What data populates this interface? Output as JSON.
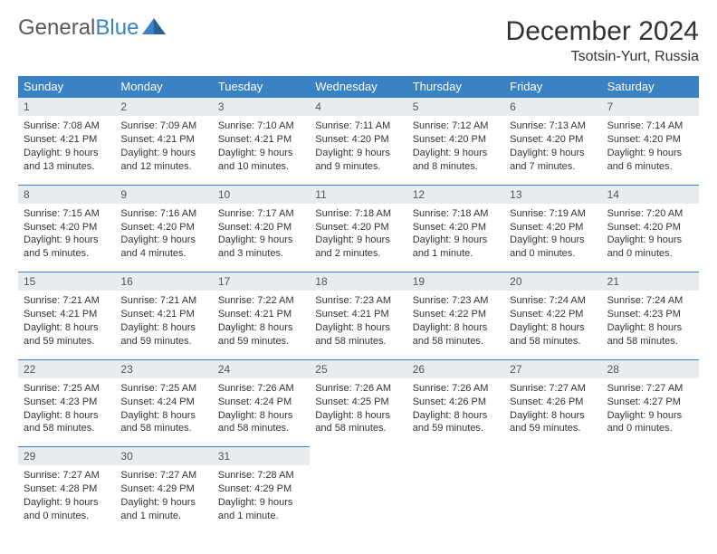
{
  "logo": {
    "word1": "General",
    "word2": "Blue"
  },
  "title": "December 2024",
  "location": "Tsotsin-Yurt, Russia",
  "colors": {
    "header_bg": "#3b82c4",
    "header_text": "#ffffff",
    "daynum_bg": "#e9ecef",
    "daynum_border": "#3b82c4",
    "body_text": "#333333",
    "logo_gray": "#5a5a5a",
    "logo_blue": "#3b82c4",
    "page_bg": "#ffffff"
  },
  "typography": {
    "title_fontsize": 30,
    "location_fontsize": 16,
    "dayname_fontsize": 13,
    "daynum_fontsize": 12,
    "cell_fontsize": 11
  },
  "day_names": [
    "Sunday",
    "Monday",
    "Tuesday",
    "Wednesday",
    "Thursday",
    "Friday",
    "Saturday"
  ],
  "weeks": [
    [
      {
        "n": "1",
        "sunrise": "Sunrise: 7:08 AM",
        "sunset": "Sunset: 4:21 PM",
        "day1": "Daylight: 9 hours",
        "day2": "and 13 minutes."
      },
      {
        "n": "2",
        "sunrise": "Sunrise: 7:09 AM",
        "sunset": "Sunset: 4:21 PM",
        "day1": "Daylight: 9 hours",
        "day2": "and 12 minutes."
      },
      {
        "n": "3",
        "sunrise": "Sunrise: 7:10 AM",
        "sunset": "Sunset: 4:21 PM",
        "day1": "Daylight: 9 hours",
        "day2": "and 10 minutes."
      },
      {
        "n": "4",
        "sunrise": "Sunrise: 7:11 AM",
        "sunset": "Sunset: 4:20 PM",
        "day1": "Daylight: 9 hours",
        "day2": "and 9 minutes."
      },
      {
        "n": "5",
        "sunrise": "Sunrise: 7:12 AM",
        "sunset": "Sunset: 4:20 PM",
        "day1": "Daylight: 9 hours",
        "day2": "and 8 minutes."
      },
      {
        "n": "6",
        "sunrise": "Sunrise: 7:13 AM",
        "sunset": "Sunset: 4:20 PM",
        "day1": "Daylight: 9 hours",
        "day2": "and 7 minutes."
      },
      {
        "n": "7",
        "sunrise": "Sunrise: 7:14 AM",
        "sunset": "Sunset: 4:20 PM",
        "day1": "Daylight: 9 hours",
        "day2": "and 6 minutes."
      }
    ],
    [
      {
        "n": "8",
        "sunrise": "Sunrise: 7:15 AM",
        "sunset": "Sunset: 4:20 PM",
        "day1": "Daylight: 9 hours",
        "day2": "and 5 minutes."
      },
      {
        "n": "9",
        "sunrise": "Sunrise: 7:16 AM",
        "sunset": "Sunset: 4:20 PM",
        "day1": "Daylight: 9 hours",
        "day2": "and 4 minutes."
      },
      {
        "n": "10",
        "sunrise": "Sunrise: 7:17 AM",
        "sunset": "Sunset: 4:20 PM",
        "day1": "Daylight: 9 hours",
        "day2": "and 3 minutes."
      },
      {
        "n": "11",
        "sunrise": "Sunrise: 7:18 AM",
        "sunset": "Sunset: 4:20 PM",
        "day1": "Daylight: 9 hours",
        "day2": "and 2 minutes."
      },
      {
        "n": "12",
        "sunrise": "Sunrise: 7:18 AM",
        "sunset": "Sunset: 4:20 PM",
        "day1": "Daylight: 9 hours",
        "day2": "and 1 minute."
      },
      {
        "n": "13",
        "sunrise": "Sunrise: 7:19 AM",
        "sunset": "Sunset: 4:20 PM",
        "day1": "Daylight: 9 hours",
        "day2": "and 0 minutes."
      },
      {
        "n": "14",
        "sunrise": "Sunrise: 7:20 AM",
        "sunset": "Sunset: 4:20 PM",
        "day1": "Daylight: 9 hours",
        "day2": "and 0 minutes."
      }
    ],
    [
      {
        "n": "15",
        "sunrise": "Sunrise: 7:21 AM",
        "sunset": "Sunset: 4:21 PM",
        "day1": "Daylight: 8 hours",
        "day2": "and 59 minutes."
      },
      {
        "n": "16",
        "sunrise": "Sunrise: 7:21 AM",
        "sunset": "Sunset: 4:21 PM",
        "day1": "Daylight: 8 hours",
        "day2": "and 59 minutes."
      },
      {
        "n": "17",
        "sunrise": "Sunrise: 7:22 AM",
        "sunset": "Sunset: 4:21 PM",
        "day1": "Daylight: 8 hours",
        "day2": "and 59 minutes."
      },
      {
        "n": "18",
        "sunrise": "Sunrise: 7:23 AM",
        "sunset": "Sunset: 4:21 PM",
        "day1": "Daylight: 8 hours",
        "day2": "and 58 minutes."
      },
      {
        "n": "19",
        "sunrise": "Sunrise: 7:23 AM",
        "sunset": "Sunset: 4:22 PM",
        "day1": "Daylight: 8 hours",
        "day2": "and 58 minutes."
      },
      {
        "n": "20",
        "sunrise": "Sunrise: 7:24 AM",
        "sunset": "Sunset: 4:22 PM",
        "day1": "Daylight: 8 hours",
        "day2": "and 58 minutes."
      },
      {
        "n": "21",
        "sunrise": "Sunrise: 7:24 AM",
        "sunset": "Sunset: 4:23 PM",
        "day1": "Daylight: 8 hours",
        "day2": "and 58 minutes."
      }
    ],
    [
      {
        "n": "22",
        "sunrise": "Sunrise: 7:25 AM",
        "sunset": "Sunset: 4:23 PM",
        "day1": "Daylight: 8 hours",
        "day2": "and 58 minutes."
      },
      {
        "n": "23",
        "sunrise": "Sunrise: 7:25 AM",
        "sunset": "Sunset: 4:24 PM",
        "day1": "Daylight: 8 hours",
        "day2": "and 58 minutes."
      },
      {
        "n": "24",
        "sunrise": "Sunrise: 7:26 AM",
        "sunset": "Sunset: 4:24 PM",
        "day1": "Daylight: 8 hours",
        "day2": "and 58 minutes."
      },
      {
        "n": "25",
        "sunrise": "Sunrise: 7:26 AM",
        "sunset": "Sunset: 4:25 PM",
        "day1": "Daylight: 8 hours",
        "day2": "and 58 minutes."
      },
      {
        "n": "26",
        "sunrise": "Sunrise: 7:26 AM",
        "sunset": "Sunset: 4:26 PM",
        "day1": "Daylight: 8 hours",
        "day2": "and 59 minutes."
      },
      {
        "n": "27",
        "sunrise": "Sunrise: 7:27 AM",
        "sunset": "Sunset: 4:26 PM",
        "day1": "Daylight: 8 hours",
        "day2": "and 59 minutes."
      },
      {
        "n": "28",
        "sunrise": "Sunrise: 7:27 AM",
        "sunset": "Sunset: 4:27 PM",
        "day1": "Daylight: 9 hours",
        "day2": "and 0 minutes."
      }
    ],
    [
      {
        "n": "29",
        "sunrise": "Sunrise: 7:27 AM",
        "sunset": "Sunset: 4:28 PM",
        "day1": "Daylight: 9 hours",
        "day2": "and 0 minutes."
      },
      {
        "n": "30",
        "sunrise": "Sunrise: 7:27 AM",
        "sunset": "Sunset: 4:29 PM",
        "day1": "Daylight: 9 hours",
        "day2": "and 1 minute."
      },
      {
        "n": "31",
        "sunrise": "Sunrise: 7:28 AM",
        "sunset": "Sunset: 4:29 PM",
        "day1": "Daylight: 9 hours",
        "day2": "and 1 minute."
      },
      null,
      null,
      null,
      null
    ]
  ]
}
